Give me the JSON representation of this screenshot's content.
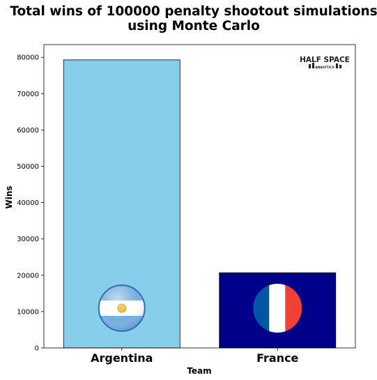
{
  "chart_data": {
    "type": "bar",
    "title_lines": [
      "Total wins of 100000 penalty shootout simulations",
      "using Monte Carlo"
    ],
    "categories": [
      "Argentina",
      "France"
    ],
    "values": [
      79300,
      20700
    ],
    "xlabel": "Team",
    "ylabel": "Wins",
    "ylim": [
      0,
      83500
    ],
    "yticks": [
      0,
      10000,
      20000,
      30000,
      40000,
      50000,
      60000,
      70000,
      80000
    ],
    "bar_colors": [
      "#87ceeb",
      "#00008b"
    ],
    "edge_color": "#000000",
    "grid": false,
    "flag_icons": [
      "argentina-flag-icon",
      "france-flag-icon"
    ],
    "flag_colors": {
      "argentina": [
        "#74acdf",
        "#ffffff",
        "#f6b40e"
      ],
      "france": [
        "#0055a4",
        "#ffffff",
        "#ef4135"
      ]
    }
  },
  "watermark": {
    "line1": "HALF SPACE",
    "line2": "ANALYTICS"
  }
}
